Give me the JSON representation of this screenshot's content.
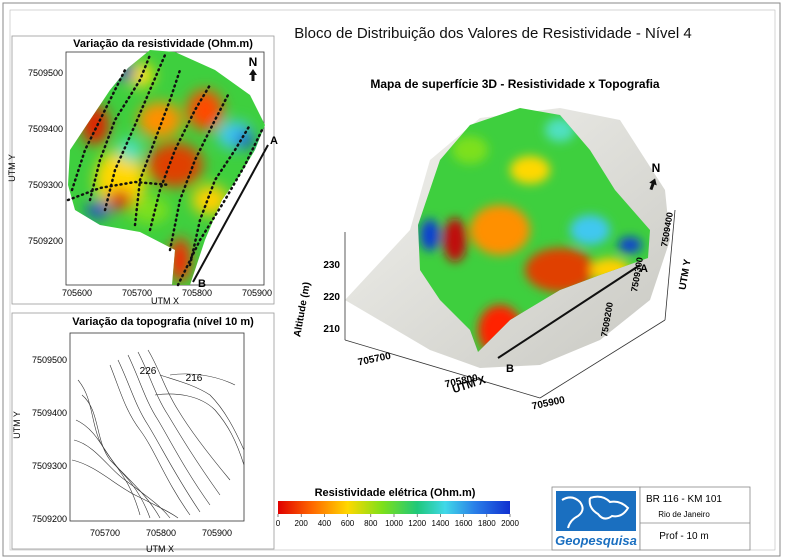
{
  "title": "Bloco de Distribuição dos Valores de Resistividade  - Nível 4",
  "map_resistivity": {
    "title": "Variação da resistividade (Ohm.m)",
    "y_label": "UTM Y",
    "x_label": "UTM X",
    "yticks": [
      "7509500",
      "7509400",
      "7509300",
      "7509200"
    ],
    "xticks": [
      "705600",
      "705700",
      "705800",
      "705900"
    ],
    "north": "N",
    "point_a": "A",
    "point_b": "B"
  },
  "map_topography": {
    "title": "Variação da  topografia (nível 10 m)",
    "y_label": "UTM Y",
    "x_label": "UTM X",
    "yticks": [
      "7509500",
      "7509400",
      "7509300",
      "7509200"
    ],
    "xticks": [
      "705700",
      "705800",
      "705900"
    ],
    "contour_labels": [
      "226",
      "216"
    ]
  },
  "surface_3d": {
    "title": "Mapa de  superfície 3D -  Resistividade  x Topografia",
    "z_label": "Altitude (m)",
    "zticks": [
      "230",
      "220",
      "210"
    ],
    "x_label": "UTM X",
    "xticks": [
      "705700",
      "705800",
      "705900"
    ],
    "y_label": "UTM Y",
    "yticks": [
      "7509400",
      "7509300",
      "7509200"
    ],
    "north": "N",
    "point_a": "A",
    "point_b": "B"
  },
  "colorbar": {
    "title": "Resistividade elétrica (Ohm.m)",
    "ticks": [
      0,
      200,
      400,
      600,
      800,
      1000,
      1200,
      1400,
      1600,
      1800,
      2000
    ]
  },
  "info": {
    "logo": "Geopesquisa",
    "project": "BR 116 - KM 101",
    "location": "Rio de Janeiro",
    "depth": "Prof - 10 m"
  }
}
